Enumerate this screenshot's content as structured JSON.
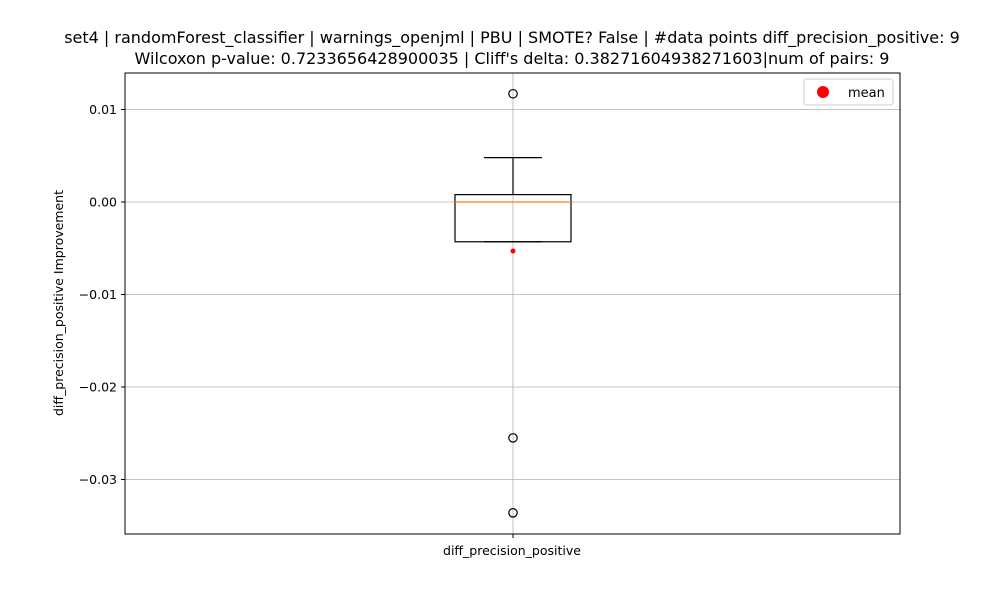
{
  "chart_data": {
    "type": "box",
    "title": "set4 | randomForest_classifier | warnings_openjml | PBU | SMOTE? False | #data points diff_precision_positive: 9",
    "subtitle": "Wilcoxon p-value: 0.7233656428900035 | Cliff's delta: 0.38271604938271603|num of pairs: 9",
    "xlabel": "",
    "ylabel": "diff_precision_positive Improvement",
    "categories": [
      "diff_precision_positive"
    ],
    "ylim": [
      -0.036,
      0.014
    ],
    "yticks": [
      0.01,
      0.0,
      -0.01,
      -0.02,
      -0.03
    ],
    "ytick_labels": [
      "0.01",
      "0.00",
      "−0.01",
      "−0.02",
      "−0.03"
    ],
    "grid": true,
    "legend": {
      "position": "top-right",
      "entries": [
        "mean"
      ]
    },
    "colors": {
      "box": "#000000",
      "median": "#ff7f0e",
      "mean": "#ff0000",
      "grid": "#b0b0b0"
    },
    "box": {
      "q1": -0.0043,
      "median": 0.0,
      "q3": 0.0008,
      "whisker_low": -0.0043,
      "whisker_high": 0.0048,
      "mean": -0.0053,
      "outliers": [
        0.0117,
        -0.0255,
        -0.0336
      ]
    }
  }
}
